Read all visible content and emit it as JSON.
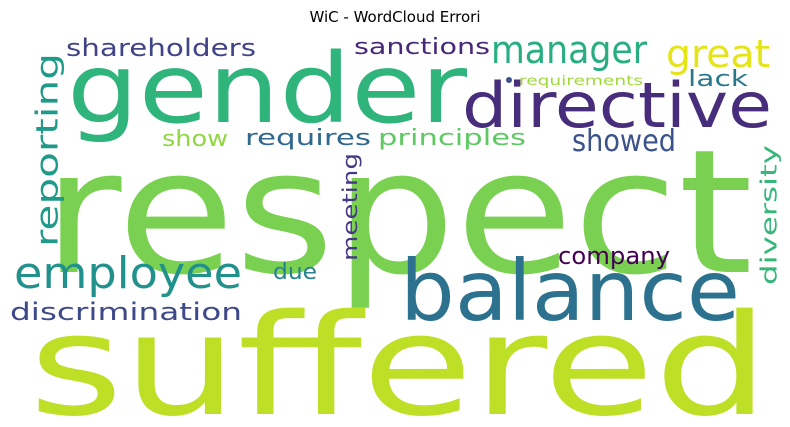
{
  "chart_data": {
    "type": "wordcloud",
    "title": "WiC - WordCloud Errori",
    "words": [
      {
        "text": "respect",
        "color": "#7ad151"
      },
      {
        "text": "suffered",
        "color": "#bddf26"
      },
      {
        "text": "gender",
        "color": "#2fb47c"
      },
      {
        "text": "balance",
        "color": "#2c728e"
      },
      {
        "text": "directive",
        "color": "#472d7b"
      },
      {
        "text": "employee",
        "color": "#21918c"
      },
      {
        "text": "manager",
        "color": "#28ae80"
      },
      {
        "text": "great",
        "color": "#e5e419"
      },
      {
        "text": "reporting",
        "color": "#1f9a8a"
      },
      {
        "text": "showed",
        "color": "#3b528b"
      },
      {
        "text": "shareholders",
        "color": "#414487"
      },
      {
        "text": "sanctions",
        "color": "#482878"
      },
      {
        "text": "principles",
        "color": "#5ec962"
      },
      {
        "text": "requires",
        "color": "#31688e"
      },
      {
        "text": "show",
        "color": "#90d743"
      },
      {
        "text": "discrimination",
        "color": "#3e4989"
      },
      {
        "text": "company",
        "color": "#440154"
      },
      {
        "text": "diversity",
        "color": "#35b779"
      },
      {
        "text": "meeting",
        "color": "#443983"
      },
      {
        "text": "due",
        "color": "#26828e"
      },
      {
        "text": "lack",
        "color": "#2a788e"
      },
      {
        "text": "requirements",
        "color": "#a0da39"
      }
    ]
  }
}
